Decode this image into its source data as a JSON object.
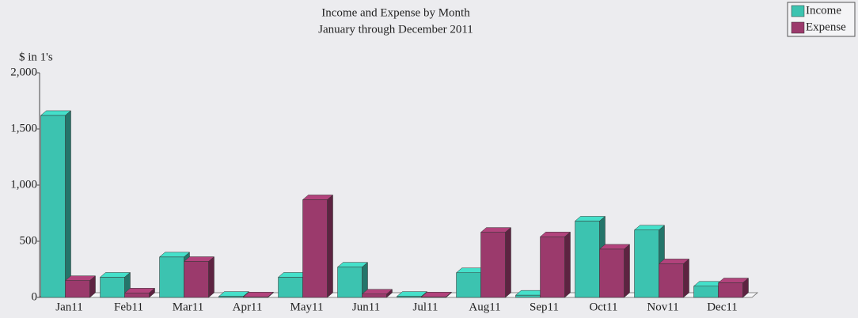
{
  "chart_data": {
    "type": "bar3d",
    "title": "Income and Expense by Month",
    "subtitle": "January through December 2011",
    "y_label": "$ in 1's",
    "categories": [
      "Jan11",
      "Feb11",
      "Mar11",
      "Apr11",
      "May11",
      "Jun11",
      "Jul11",
      "Aug11",
      "Sep11",
      "Oct11",
      "Nov11",
      "Dec11"
    ],
    "series": [
      {
        "name": "Income",
        "color": "#3cc3b0",
        "values": [
          1620,
          180,
          360,
          10,
          180,
          270,
          10,
          220,
          20,
          680,
          600,
          100
        ]
      },
      {
        "name": "Expense",
        "color": "#9b3a6c",
        "values": [
          150,
          40,
          320,
          5,
          870,
          30,
          5,
          580,
          540,
          430,
          300,
          130
        ]
      }
    ],
    "ylim": [
      0,
      2000
    ],
    "yticks": [
      0,
      500,
      {
        "value": 1000,
        "label": "1,000"
      },
      {
        "value": 1500,
        "label": "1,500"
      },
      {
        "value": 2000,
        "label": "2,000"
      }
    ],
    "legend": "top-right"
  }
}
